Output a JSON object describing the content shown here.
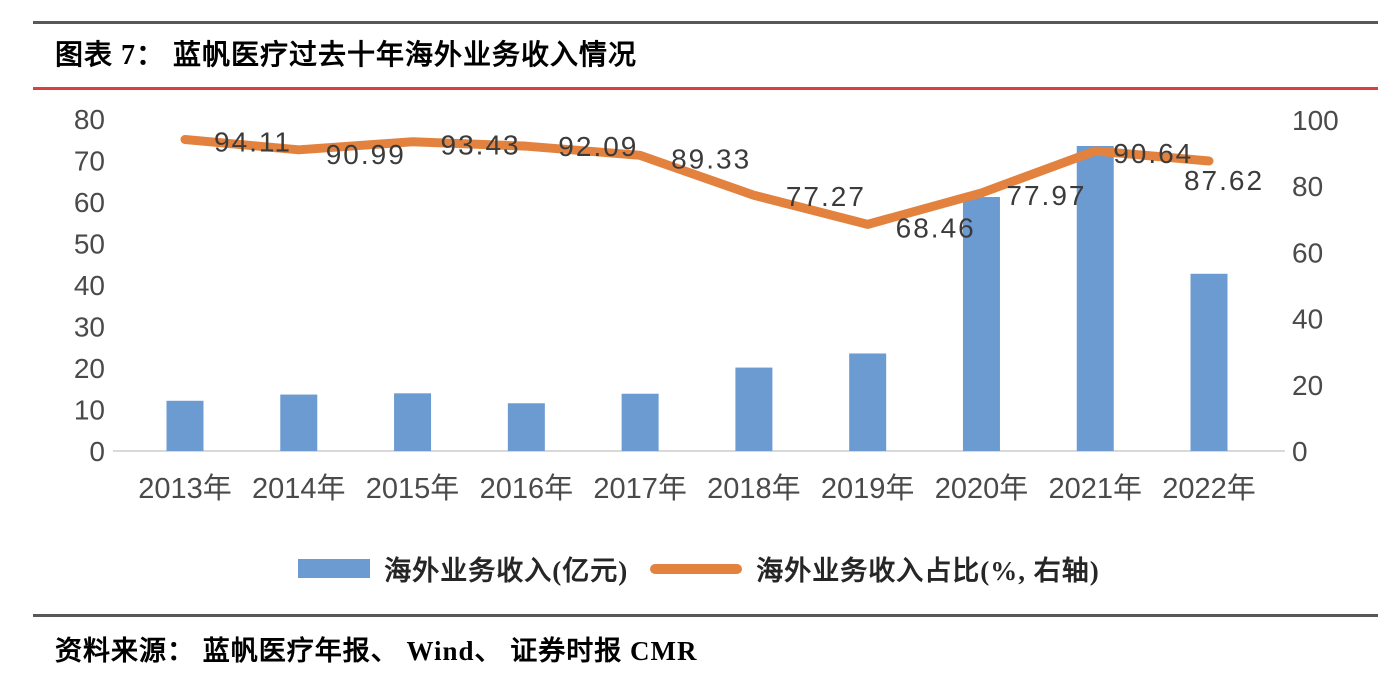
{
  "figure": {
    "title": "图表 7： 蓝帆医疗过去十年海外业务收入情况",
    "source": "资料来源： 蓝帆医疗年报、 Wind、 证券时报 CMR"
  },
  "colors": {
    "bar_blue": "#6c9bd2",
    "line_orange": "#e2823e",
    "axis_text": "#4a4a4a",
    "data_label_text": "#3b3b3b",
    "baseline_gray": "#d9d9d9",
    "divider_gray": "#58585a",
    "title_underline_red": "#dd3f3f"
  },
  "chart_data": {
    "type": "bar",
    "subtype": "combo-bar-line",
    "categories": [
      "2013年",
      "2014年",
      "2015年",
      "2016年",
      "2017年",
      "2018年",
      "2019年",
      "2020年",
      "2021年",
      "2022年"
    ],
    "series": [
      {
        "name": "海外业务收入(亿元)",
        "type": "bar",
        "axis": "left",
        "color": "#6c9bd2",
        "values": [
          12.1,
          13.6,
          13.9,
          11.5,
          13.8,
          20.1,
          23.5,
          61.2,
          73.5,
          42.7
        ]
      },
      {
        "name": "海外业务收入占比(%, 右轴)",
        "type": "line",
        "axis": "right",
        "color": "#e2823e",
        "values": [
          94.11,
          90.99,
          93.43,
          92.09,
          89.33,
          77.27,
          68.46,
          77.97,
          90.64,
          87.62
        ],
        "point_labels": [
          "94.11",
          "90.99",
          "93.43",
          "92.09",
          "89.33",
          "77.27",
          "68.46",
          "77.97",
          "90.64",
          "87.62"
        ]
      }
    ],
    "left_axis": {
      "min": 0,
      "max": 80,
      "step": 10,
      "ticks": [
        "0",
        "10",
        "20",
        "30",
        "40",
        "50",
        "60",
        "70",
        "80"
      ]
    },
    "right_axis": {
      "min": 0,
      "max": 100,
      "step": 20,
      "ticks": [
        "0",
        "20",
        "40",
        "60",
        "80",
        "100"
      ]
    },
    "legend_position": "bottom",
    "grid": false,
    "title": "蓝帆医疗过去十年海外业务收入情况",
    "xlabel": "",
    "ylabel": ""
  }
}
